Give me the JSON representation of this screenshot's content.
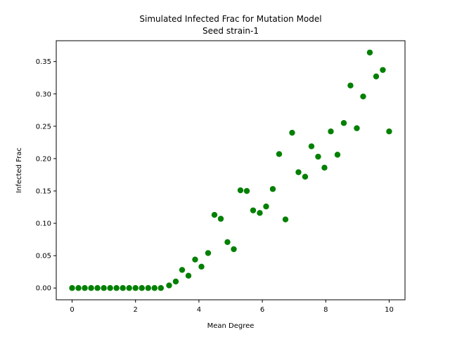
{
  "chart_data": {
    "type": "scatter",
    "title": "Simulated Infected Frac for Mutation Model",
    "subtitle": "Seed strain-1",
    "xlabel": "Mean Degree",
    "ylabel": "Infected Frac",
    "xlim": [
      -0.5,
      10.5
    ],
    "ylim": [
      -0.0182,
      0.3822
    ],
    "xticks": [
      0,
      2,
      4,
      6,
      8,
      10
    ],
    "xtick_labels": [
      "0",
      "2",
      "4",
      "6",
      "8",
      "10"
    ],
    "yticks": [
      0.0,
      0.05,
      0.1,
      0.15,
      0.2,
      0.25,
      0.3,
      0.35
    ],
    "ytick_labels": [
      "0.00",
      "0.05",
      "0.10",
      "0.15",
      "0.20",
      "0.25",
      "0.30",
      "0.35"
    ],
    "grid": false,
    "color": "#008000",
    "series": [
      {
        "x": [
          0.0,
          0.2,
          0.4,
          0.6,
          0.8,
          1.0,
          1.2,
          1.4,
          1.6,
          1.8,
          2.0,
          2.2,
          2.4,
          2.6,
          2.8,
          3.06,
          3.27,
          3.47,
          3.67,
          3.88,
          4.08,
          4.29,
          4.49,
          4.69,
          4.9,
          5.1,
          5.31,
          5.51,
          5.71,
          5.92,
          6.12,
          6.33,
          6.53,
          6.73,
          6.94,
          7.14,
          7.35,
          7.55,
          7.76,
          7.96,
          8.16,
          8.37,
          8.57,
          8.78,
          8.98,
          9.18,
          9.39,
          9.59,
          9.8,
          10.0
        ],
        "y": [
          0.0,
          0.0,
          0.0,
          0.0,
          0.0,
          0.0,
          0.0,
          0.0,
          0.0,
          0.0,
          0.0,
          0.0,
          0.0,
          0.0,
          0.0,
          0.004,
          0.01,
          0.028,
          0.019,
          0.044,
          0.033,
          0.054,
          0.113,
          0.107,
          0.071,
          0.06,
          0.151,
          0.15,
          0.12,
          0.116,
          0.126,
          0.153,
          0.207,
          0.106,
          0.24,
          0.179,
          0.172,
          0.219,
          0.203,
          0.186,
          0.242,
          0.206,
          0.255,
          0.313,
          0.247,
          0.296,
          0.364,
          0.327,
          0.337,
          0.242
        ]
      }
    ]
  }
}
